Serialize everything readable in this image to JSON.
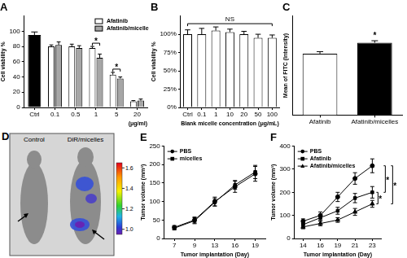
{
  "chart_data": [
    {
      "type": "bar",
      "title": "A",
      "categories": [
        "Ctrl",
        "0.1",
        "0.5",
        "1",
        "5",
        "20"
      ],
      "xlabel": "(μg/ml)",
      "ylabel": "Cell viability %",
      "series": [
        {
          "name": "Afatinib",
          "color": "#ffffff",
          "colors": [
            "#000000",
            "#ffffff",
            "#ffffff",
            "#ffffff",
            "#ffffff",
            "#ffffff"
          ],
          "values": [
            95,
            80,
            80,
            78,
            43,
            8
          ],
          "errors": [
            4,
            2,
            3,
            2,
            3,
            1
          ]
        },
        {
          "name": "Afatinib/micelle",
          "color": "#a6a6a6",
          "values": [
            null,
            82,
            78,
            65,
            38,
            9
          ],
          "errors": [
            null,
            4,
            3,
            5,
            2,
            2
          ]
        }
      ],
      "ylim": [
        0,
        120
      ],
      "yticks": [
        0,
        20,
        40,
        60,
        80,
        100
      ],
      "grid": false,
      "legend": "top right",
      "annotations": [
        {
          "text": "*",
          "category": "1"
        },
        {
          "text": "*",
          "category": "5"
        }
      ]
    },
    {
      "type": "bar",
      "title": "B",
      "categories": [
        "Ctrl",
        "0.1",
        "1",
        "10",
        "20",
        "50",
        "100"
      ],
      "xlabel": "Blank micelle concentration (μg/mL)",
      "ylabel": "Cell viability %",
      "color": "#ffffff",
      "values": [
        100,
        100,
        105,
        103,
        100,
        95,
        95
      ],
      "errors": [
        6,
        8,
        5,
        4,
        4,
        5,
        4
      ],
      "ylim": [
        0,
        125
      ],
      "yticks": [
        {
          "value": 0,
          "label": "0%"
        },
        {
          "value": 25,
          "label": "25%"
        },
        {
          "value": 50,
          "label": "50%"
        },
        {
          "value": 75,
          "label": "75%"
        },
        {
          "value": 100,
          "label": "100%"
        }
      ],
      "grid": false,
      "annotations": [
        {
          "text": "NS"
        }
      ]
    },
    {
      "type": "bar",
      "title": "C",
      "categories": [
        "Afatinib",
        "Afatinib/micelles"
      ],
      "ylabel": "Mean of FITC (Intensity)",
      "colors": [
        "#ffffff",
        "#000000"
      ],
      "values": [
        62,
        73
      ],
      "errors": [
        2,
        2
      ],
      "ylim": [
        0,
        100
      ],
      "grid": false,
      "tick_labels": "x",
      "annotations": [
        {
          "text": "*",
          "category": "Afatinib/micelles"
        }
      ]
    },
    {
      "type": "line",
      "title": "E",
      "categories": [
        "7",
        "9",
        "13",
        "16",
        "19"
      ],
      "xlabel": "Tumor implantation (Day)",
      "ylabel": "Tumor volume (mm³)",
      "series": [
        {
          "name": "PBS",
          "color": "#000000",
          "marker": "circle",
          "values": [
            30,
            50,
            100,
            140,
            175
          ],
          "errors": [
            5,
            8,
            12,
            15,
            20
          ]
        },
        {
          "name": "micelles",
          "color": "#000000",
          "marker": "square",
          "values": [
            28,
            48,
            98,
            145,
            180
          ],
          "errors": [
            5,
            8,
            10,
            12,
            18
          ]
        }
      ],
      "ylim": [
        0,
        250
      ],
      "yticks": [
        0,
        50,
        100,
        150,
        200,
        250
      ],
      "grid": false,
      "legend": "top left"
    },
    {
      "type": "line",
      "title": "F",
      "categories": [
        "14",
        "16",
        "19",
        "21",
        "23"
      ],
      "xlabel": "Tumor implantation (Day)",
      "ylabel": "Tumor volume (mm³)",
      "series": [
        {
          "name": "PBS",
          "color": "#000000",
          "marker": "circle",
          "values": [
            75,
            100,
            180,
            260,
            315
          ],
          "errors": [
            10,
            15,
            20,
            25,
            30
          ]
        },
        {
          "name": "Afatinib",
          "color": "#000000",
          "marker": "square",
          "values": [
            60,
            90,
            120,
            175,
            200
          ],
          "errors": [
            10,
            12,
            15,
            20,
            25
          ]
        },
        {
          "name": "Afatinib/micelles",
          "color": "#000000",
          "marker": "triangle",
          "values": [
            50,
            65,
            80,
            115,
            150
          ],
          "errors": [
            8,
            10,
            10,
            15,
            15
          ]
        }
      ],
      "ylim": [
        0,
        400
      ],
      "yticks": [
        0,
        100,
        200,
        300,
        400
      ],
      "grid": false,
      "legend": "top left",
      "annotations": [
        {
          "text": "*",
          "series": [
            "PBS",
            "Afatinib"
          ]
        },
        {
          "text": "*",
          "series": [
            "Afatinib",
            "Afatinib/micelles"
          ]
        },
        {
          "text": "*",
          "series": [
            "PBS",
            "Afatinib/micelles"
          ]
        }
      ]
    }
  ],
  "image": {
    "title": "D",
    "labels": [
      "Control",
      "DiR/micelles"
    ],
    "colorbar": {
      "range": [
        0.95,
        1.65
      ],
      "ticks": [
        {
          "value": 1,
          "label": "1.0"
        },
        1.2,
        1.4,
        1.6
      ]
    }
  }
}
